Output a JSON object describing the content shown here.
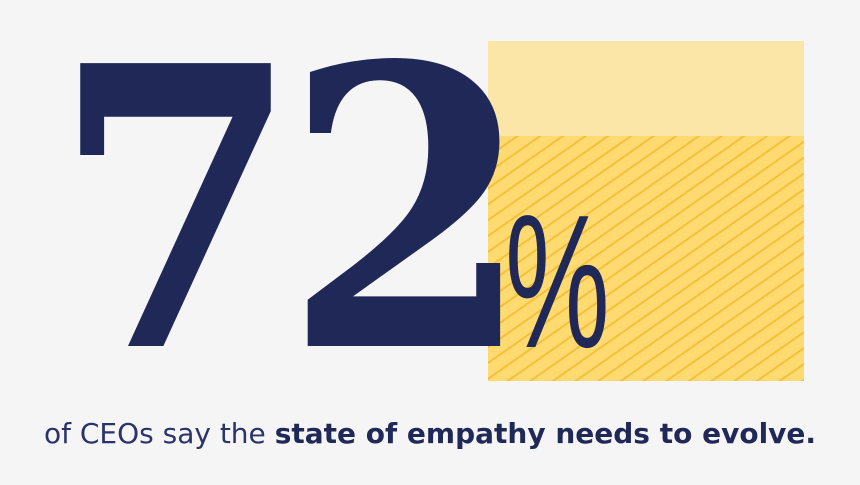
{
  "stat": {
    "number": "72",
    "unit": "%",
    "fraction": 0.72
  },
  "caption": {
    "prefix": "of CEOs say the",
    "emphasis": "state of empathy needs to evolve."
  },
  "colors": {
    "background": "#f5f5f6",
    "navy": "#1f2857",
    "light_yellow": "#fbe6a7",
    "yellow": "#ffda70",
    "stripe": "#f3be37"
  }
}
